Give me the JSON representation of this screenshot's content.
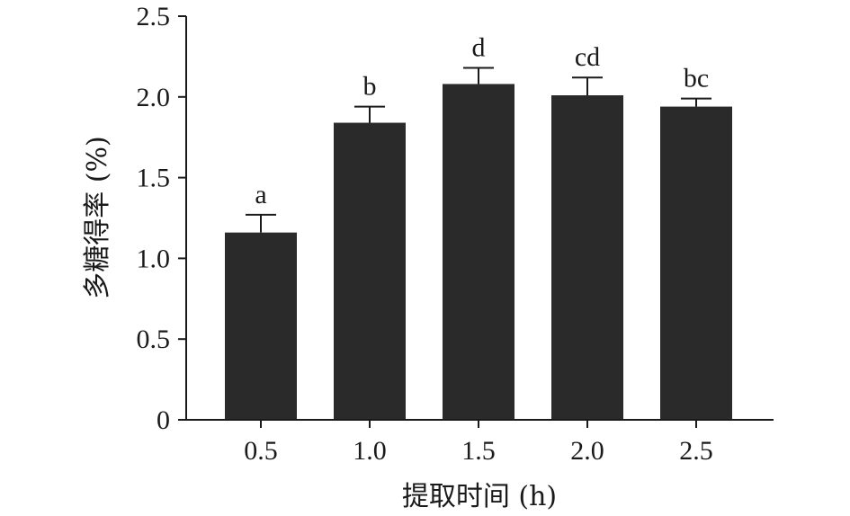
{
  "chart_data": {
    "type": "bar",
    "categories": [
      "0.5",
      "1.0",
      "1.5",
      "2.0",
      "2.5"
    ],
    "values": [
      1.16,
      1.84,
      2.08,
      2.01,
      1.94
    ],
    "error_upper": [
      0.11,
      0.1,
      0.1,
      0.11,
      0.05
    ],
    "significance_labels": [
      "a",
      "b",
      "d",
      "cd",
      "bc"
    ],
    "xlabel": "提取时间 (h)",
    "ylabel": "多糖得率 (%)",
    "ylim": [
      0,
      2.5
    ],
    "yticks": [
      "0",
      "0.5",
      "1.0",
      "1.5",
      "2.0",
      "2.5"
    ],
    "grid": false,
    "bar_color": "#2a2a2a"
  }
}
